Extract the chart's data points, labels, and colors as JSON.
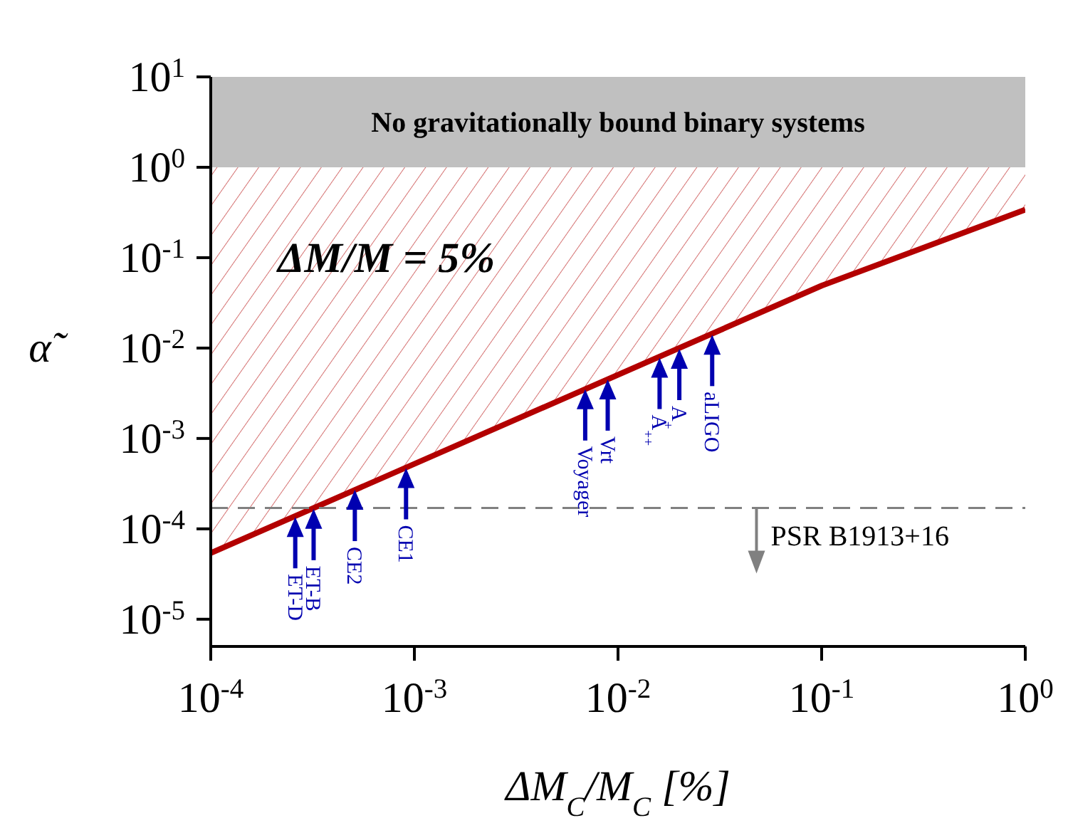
{
  "chart_data": {
    "type": "line",
    "xlabel": "ΔM$_{C}$/M$_{C}$   [%]",
    "ylabel": "α̃",
    "log": "xy",
    "xlim": [
      0.0001,
      1
    ],
    "ylim": [
      5e-06,
      10
    ],
    "xticks": [
      {
        "value": 0.0001,
        "label": "10$^{-4}$"
      },
      {
        "value": 0.001,
        "label": "10$^{-3}$"
      },
      {
        "value": 0.01,
        "label": "10$^{-2}$"
      },
      {
        "value": 0.1,
        "label": "10$^{-1}$"
      },
      {
        "value": 1,
        "label": "10$^{0}$"
      }
    ],
    "yticks": [
      {
        "value": 1e-05,
        "label": "10$^{-5}$"
      },
      {
        "value": 0.0001,
        "label": "10$^{-4}$"
      },
      {
        "value": 0.001,
        "label": "10$^{-3}$"
      },
      {
        "value": 0.01,
        "label": "10$^{-2}$"
      },
      {
        "value": 0.1,
        "label": "10$^{-1}$"
      },
      {
        "value": 1,
        "label": "10$^{0}$"
      },
      {
        "value": 10,
        "label": "10$^{1}$"
      }
    ],
    "series": [
      {
        "color": "#b30000",
        "x": [
          0.0001,
          0.1,
          1
        ],
        "values": [
          5.4e-05,
          0.049,
          0.34
        ],
        "lower": [
          5.4e-05,
          0.049,
          0.34
        ],
        "upper": [
          1,
          1,
          1
        ]
      }
    ],
    "bands": [
      {
        "axis": "y",
        "from": 1,
        "to": 10,
        "label": "No gravitationally bound binary systems",
        "color": "#c0c0c0"
      }
    ],
    "ref_lines": [
      {
        "axis": "y",
        "value": 0.00017,
        "label": "PSR B1913+16",
        "color": "#808080",
        "line_style": "dashed"
      }
    ],
    "annotations": [
      "ΔM/M = 5%",
      {
        "text": "ET-D",
        "x": 0.00026,
        "y": 0.000135
      },
      {
        "text": "ET-B",
        "x": 0.00032,
        "y": 0.000166
      },
      {
        "text": "CE2",
        "x": 0.00051,
        "y": 0.00027
      },
      {
        "text": "CE1",
        "x": 0.00091,
        "y": 0.00047
      },
      {
        "text": "Voyager",
        "x": 0.0069,
        "y": 0.0035
      },
      {
        "text": "Vrt",
        "x": 0.0089,
        "y": 0.0045
      },
      {
        "text": "A$_{++}$",
        "x": 0.016,
        "y": 0.0078
      },
      {
        "text": "A$_{+}$",
        "x": 0.02,
        "y": 0.0098
      },
      {
        "text": "aLIGO",
        "x": 0.029,
        "y": 0.014
      }
    ]
  }
}
